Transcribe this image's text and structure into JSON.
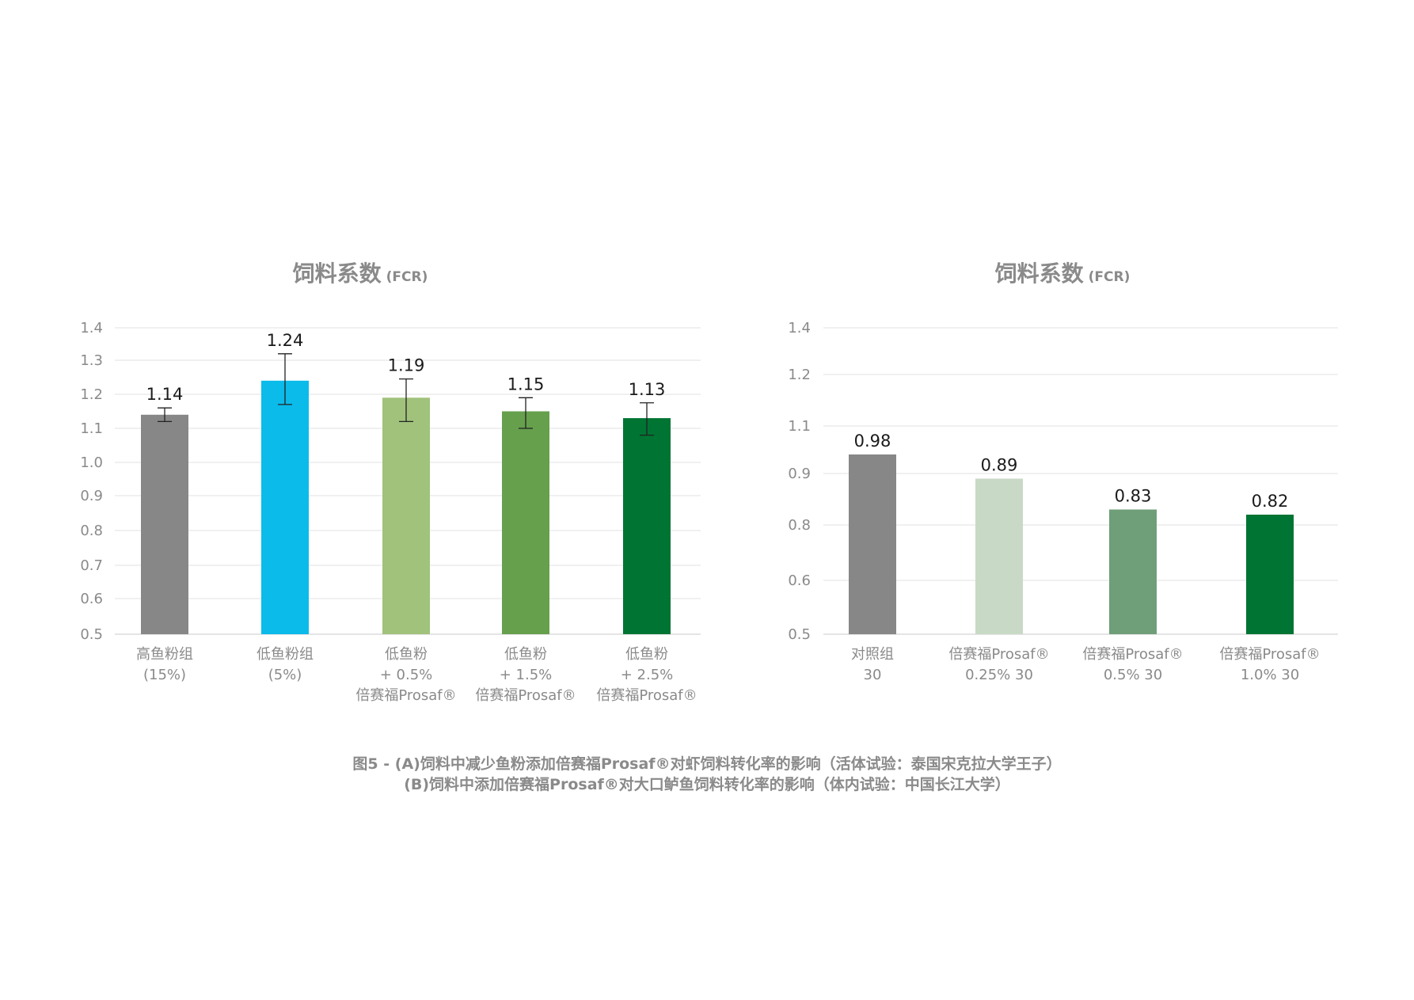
{
  "chart_data": [
    {
      "type": "bar",
      "title": "饲料系数",
      "title_suffix": "(FCR)",
      "ytick_labels": [
        "0.5",
        "0.6",
        "0.7",
        "0.8",
        "0.9",
        "1.0",
        "1.1",
        "1.2",
        "1.3",
        "1.4"
      ],
      "categories": [
        [
          "高鱼粉组",
          "(15%)"
        ],
        [
          "低鱼粉组",
          "(5%)"
        ],
        [
          "低鱼粉",
          "+ 0.5%",
          "倍赛福Prosaf®"
        ],
        [
          "低鱼粉",
          "+ 1.5%",
          "倍赛福Prosaf®"
        ],
        [
          "低鱼粉",
          "+ 2.5%",
          "倍赛福Prosaf®"
        ]
      ],
      "values": [
        1.14,
        1.24,
        1.19,
        1.15,
        1.13
      ],
      "value_labels": [
        "1.14",
        "1.24",
        "1.19",
        "1.15",
        "1.13"
      ],
      "error_low": [
        1.12,
        1.17,
        1.12,
        1.1,
        1.08
      ],
      "error_high": [
        1.16,
        1.32,
        1.245,
        1.19,
        1.175
      ],
      "colors": [
        "#878787",
        "#0bbbea",
        "#a0c27b",
        "#66a04d",
        "#007433"
      ],
      "grid": true
    },
    {
      "type": "bar",
      "title": "饲料系数",
      "title_suffix": "(FCR)",
      "ytick_labels": [
        "0.5",
        "0.6",
        "0.8",
        "0.9",
        "1.1",
        "1.2",
        "1.4"
      ],
      "categories": [
        [
          "对照组",
          "30"
        ],
        [
          "倍赛福Prosaf®",
          "0.25% 30"
        ],
        [
          "倍赛福Prosaf®",
          "0.5% 30"
        ],
        [
          "倍赛福Prosaf®",
          "1.0% 30"
        ]
      ],
      "values": [
        0.98,
        0.89,
        0.83,
        0.82
      ],
      "value_labels": [
        "0.98",
        "0.89",
        "0.83",
        "0.82"
      ],
      "colors": [
        "#878787",
        "#c8dac5",
        "#6f9f78",
        "#007433"
      ],
      "grid": true
    }
  ],
  "caption": {
    "line1": "图5 - (A)饲料中减少鱼粉添加倍赛福Prosaf®对虾饲料转化率的影响（活体试验：泰国宋克拉大学王子）",
    "line2": "(B)饲料中添加倍赛福Prosaf®对大口鲈鱼饲料转化率的影响（体内试验：中国长江大学）"
  }
}
